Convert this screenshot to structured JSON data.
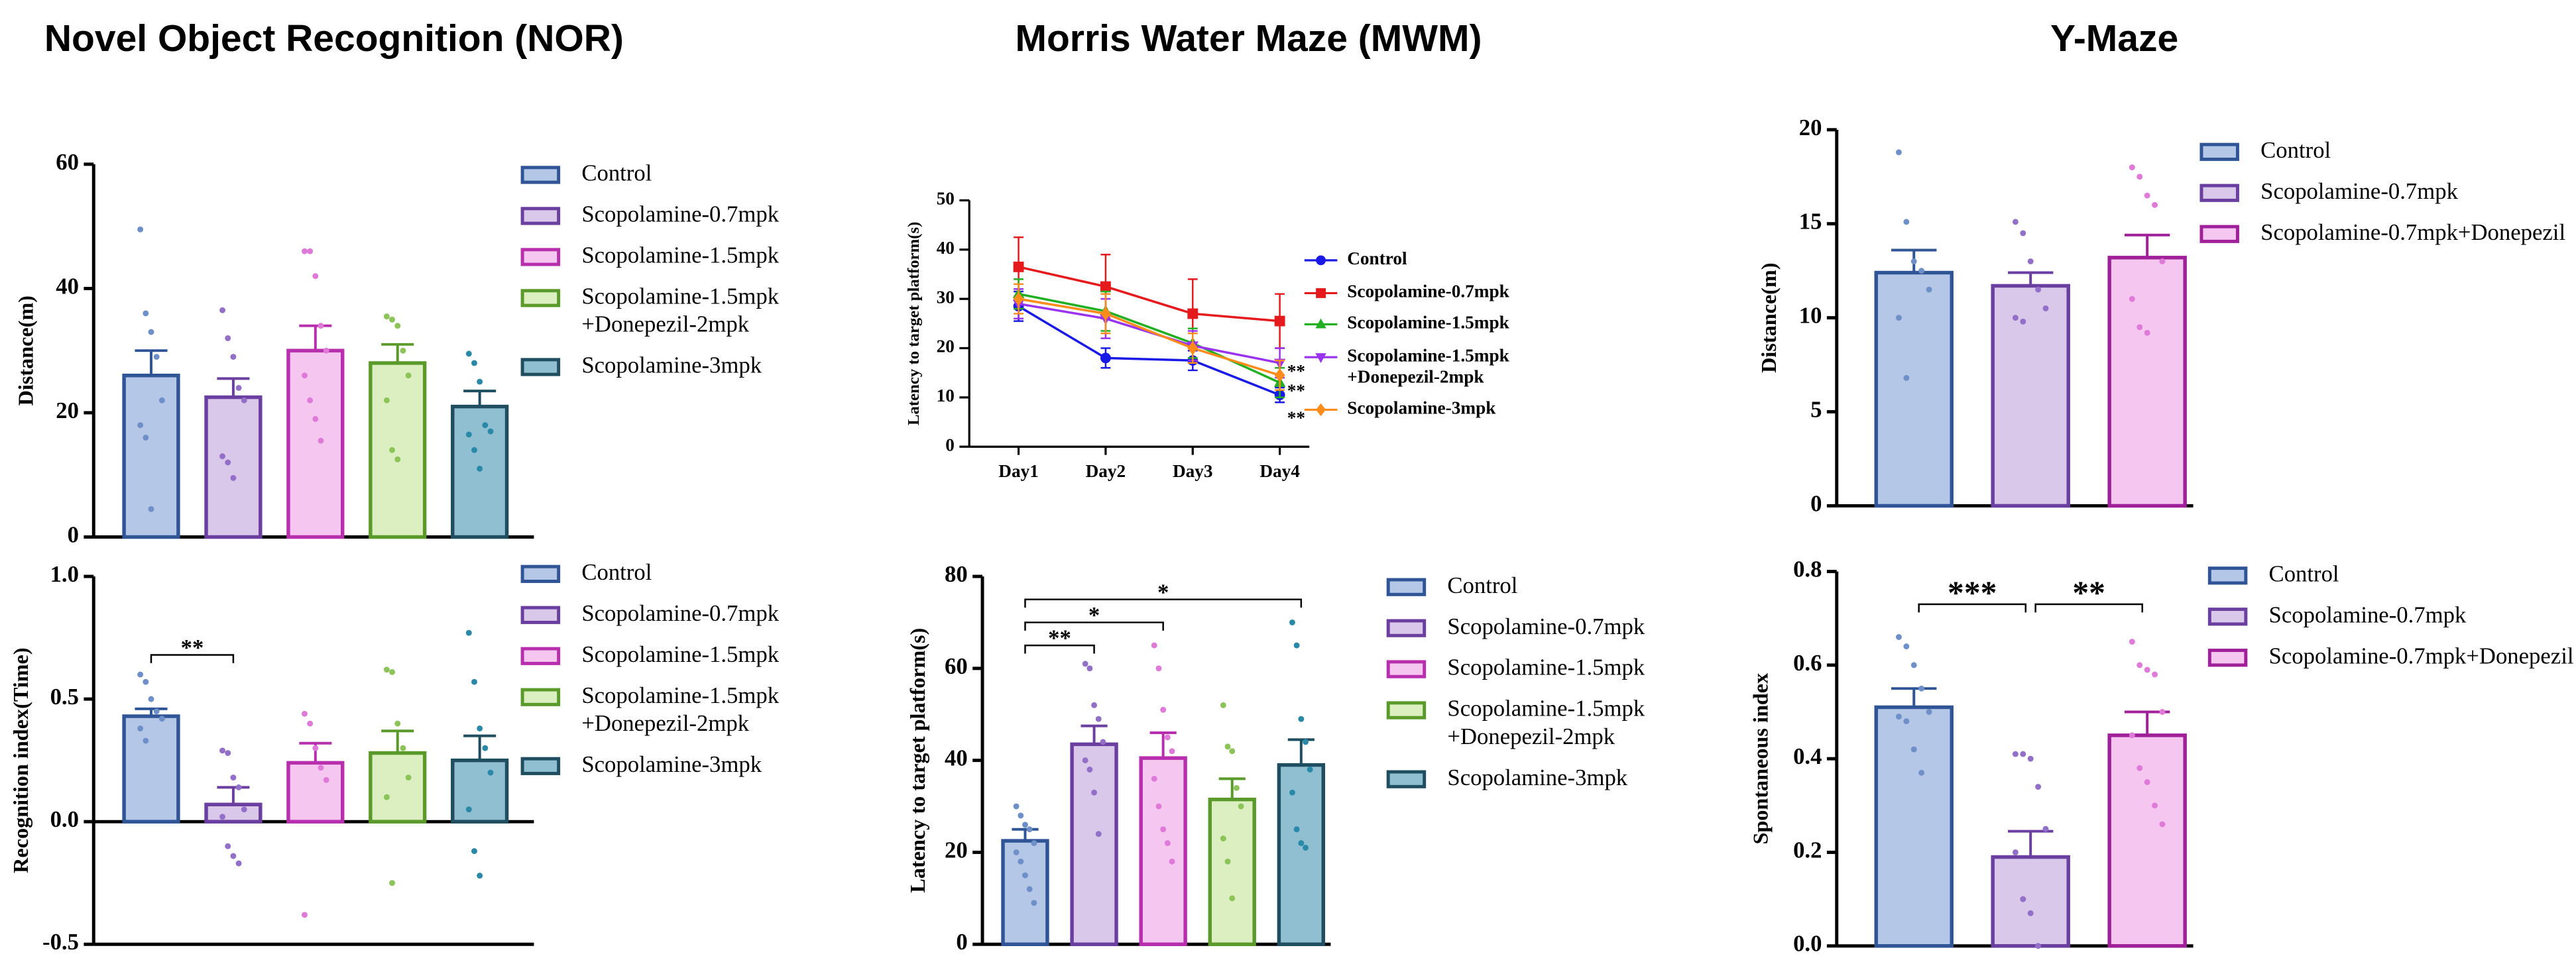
{
  "headings": [
    "Novel Object Recognition (NOR)",
    "Morris Water Maze (MWM)",
    "Y-Maze"
  ],
  "chart_data": [
    {
      "type": "bar",
      "ylabel": "Distance(m)",
      "ylim": [
        0,
        60
      ],
      "yticks": [
        0,
        20,
        40,
        60
      ],
      "series": [
        {
          "name": "Control",
          "color": "#2f5597",
          "fill": "#b4c7e7",
          "point_color": "#6f8fc8",
          "values": [
            26
          ],
          "errors": [
            4
          ],
          "points": [
            49.5,
            36,
            33,
            29,
            22,
            18,
            16,
            4.5
          ]
        },
        {
          "name": "Scopolamine-0.7mpk",
          "color": "#6a3fa0",
          "fill": "#d9c8ea",
          "point_color": "#9370c8",
          "values": [
            22.5
          ],
          "errors": [
            3
          ],
          "points": [
            36.5,
            32,
            29,
            24,
            22,
            13,
            12,
            9.5
          ]
        },
        {
          "name": "Scopolamine-1.5mpk",
          "color": "#b82fae",
          "fill": "#f5c6f0",
          "point_color": "#e07ad8",
          "values": [
            30
          ],
          "errors": [
            4
          ],
          "points": [
            46,
            46,
            42,
            34,
            30,
            26,
            22,
            19,
            15.5
          ]
        },
        {
          "name": "Scopolamine-1.5mpk\n+Donepezil-2mpk",
          "color": "#5a9a2a",
          "fill": "#dcefc0",
          "point_color": "#8cc45a",
          "values": [
            28
          ],
          "errors": [
            3
          ],
          "points": [
            35.5,
            35,
            34,
            30,
            26,
            22,
            14,
            12.5
          ]
        },
        {
          "name": "Scopolamine-3mpk",
          "color": "#1f4e60",
          "fill": "#8fbfd0",
          "point_color": "#2b89a8",
          "values": [
            21
          ],
          "errors": [
            2.5
          ],
          "points": [
            29.5,
            28,
            25,
            18,
            17,
            16.5,
            14,
            11
          ]
        }
      ]
    },
    {
      "type": "bar",
      "ylabel": "Recognition index(Time)",
      "ylim": [
        -0.5,
        1.0
      ],
      "yticks": [
        -0.5,
        {
          "value": 0,
          "label": "0.0"
        },
        0.5,
        {
          "value": 1,
          "label": "1.0"
        }
      ],
      "series": [
        {
          "name": "Control",
          "color": "#2f5597",
          "fill": "#b4c7e7",
          "point_color": "#6f8fc8",
          "values": [
            0.43
          ],
          "errors": [
            0.03
          ],
          "points": [
            0.6,
            0.57,
            0.5,
            0.45,
            0.42,
            0.38,
            0.33
          ]
        },
        {
          "name": "Scopolamine-0.7mpk",
          "color": "#6a3fa0",
          "fill": "#d9c8ea",
          "point_color": "#9370c8",
          "values": [
            0.07
          ],
          "errors": [
            0.07
          ],
          "points": [
            0.29,
            0.28,
            0.18,
            0.14,
            0.05,
            0.02,
            -0.1,
            -0.14,
            -0.17
          ]
        },
        {
          "name": "Scopolamine-1.5mpk",
          "color": "#b82fae",
          "fill": "#f5c6f0",
          "point_color": "#e07ad8",
          "values": [
            0.24
          ],
          "errors": [
            0.08
          ],
          "points": [
            0.44,
            0.4,
            0.3,
            0.22,
            0.17,
            -0.38
          ]
        },
        {
          "name": "Scopolamine-1.5mpk\n+Donepezil-2mpk",
          "color": "#5a9a2a",
          "fill": "#dcefc0",
          "point_color": "#8cc45a",
          "values": [
            0.28
          ],
          "errors": [
            0.09
          ],
          "points": [
            0.62,
            0.61,
            0.4,
            0.3,
            0.18,
            0.1,
            -0.25
          ]
        },
        {
          "name": "Scopolamine-3mpk",
          "color": "#1f4e60",
          "fill": "#8fbfd0",
          "point_color": "#2b89a8",
          "values": [
            0.25
          ],
          "errors": [
            0.1
          ],
          "points": [
            0.77,
            0.57,
            0.38,
            0.3,
            0.2,
            0.05,
            -0.12,
            -0.22
          ]
        }
      ],
      "annotations": [
        {
          "text": "**",
          "from": 0,
          "to": 1,
          "y": 0.68
        }
      ]
    },
    {
      "type": "line",
      "ylabel": "Latency to target platform(s)",
      "categories": [
        "Day1",
        "Day2",
        "Day3",
        "Day4"
      ],
      "ylim": [
        0,
        50
      ],
      "yticks": [
        0,
        10,
        20,
        30,
        40,
        50
      ],
      "series": [
        {
          "name": "Control",
          "color": "#1a1ae6",
          "marker": "circle",
          "values": [
            28.5,
            18,
            17.5,
            10.5
          ],
          "errors": [
            3,
            2,
            2,
            1.5
          ]
        },
        {
          "name": "Scopolamine-0.7mpk",
          "color": "#e41a1c",
          "marker": "square",
          "values": [
            36.5,
            32.5,
            27,
            25.5
          ],
          "errors": [
            6,
            6.5,
            7,
            5.5
          ]
        },
        {
          "name": "Scopolamine-1.5mpk",
          "color": "#22b022",
          "marker": "triangle-up",
          "values": [
            31,
            27.5,
            21,
            13
          ],
          "errors": [
            3,
            4,
            3,
            3
          ]
        },
        {
          "name": "Scopolamine-1.5mpk\n+Donepezil-2mpk",
          "color": "#9933ee",
          "marker": "triangle-down",
          "values": [
            29,
            26,
            20.5,
            17
          ],
          "errors": [
            3,
            4,
            3,
            3
          ]
        },
        {
          "name": "Scopolamine-3mpk",
          "color": "#ff8c1a",
          "marker": "diamond",
          "values": [
            30,
            27,
            20,
            14.5
          ],
          "errors": [
            3,
            4,
            3,
            3
          ]
        }
      ],
      "annotations": [
        {
          "text": "**",
          "x": 3,
          "y": 15
        },
        {
          "text": "**",
          "x": 3,
          "y": 11
        },
        {
          "text": "**",
          "x": 3,
          "y": 5.5
        }
      ]
    },
    {
      "type": "bar",
      "ylabel": "Latency to target platform(s)",
      "ylim": [
        0,
        80
      ],
      "yticks": [
        0,
        20,
        40,
        60,
        80
      ],
      "series": [
        {
          "name": "Control",
          "color": "#2f5597",
          "fill": "#b4c7e7",
          "point_color": "#6f8fc8",
          "values": [
            22.5
          ],
          "errors": [
            2.5
          ],
          "points": [
            30,
            28,
            26,
            25,
            22,
            20,
            18,
            15,
            12,
            9
          ]
        },
        {
          "name": "Scopolamine-0.7mpk",
          "color": "#6a3fa0",
          "fill": "#d9c8ea",
          "point_color": "#9370c8",
          "values": [
            43.5
          ],
          "errors": [
            4
          ],
          "points": [
            61,
            60,
            52,
            49,
            44,
            40,
            38,
            33,
            24
          ]
        },
        {
          "name": "Scopolamine-1.5mpk",
          "color": "#b82fae",
          "fill": "#f5c6f0",
          "point_color": "#e07ad8",
          "values": [
            40.5
          ],
          "errors": [
            5.5
          ],
          "points": [
            65,
            60,
            51,
            45,
            42,
            36,
            30,
            25,
            22,
            18
          ]
        },
        {
          "name": "Scopolamine-1.5mpk\n+Donepezil-2mpk",
          "color": "#5a9a2a",
          "fill": "#dcefc0",
          "point_color": "#8cc45a",
          "values": [
            31.5
          ],
          "errors": [
            4.5
          ],
          "points": [
            52,
            43,
            42,
            34,
            30,
            23,
            18,
            10
          ]
        },
        {
          "name": "Scopolamine-3mpk",
          "color": "#1f4e60",
          "fill": "#8fbfd0",
          "point_color": "#2b89a8",
          "values": [
            39
          ],
          "errors": [
            5.5
          ],
          "points": [
            70,
            65,
            49,
            44,
            38,
            33,
            25,
            22,
            21
          ]
        }
      ],
      "annotations": [
        {
          "text": "**",
          "from": 0,
          "to": 1,
          "y": 65
        },
        {
          "text": "*",
          "from": 0,
          "to": 2,
          "y": 70
        },
        {
          "text": "*",
          "from": 0,
          "to": 4,
          "y": 75
        }
      ]
    },
    {
      "type": "bar",
      "ylabel": "Distance(m)",
      "ylim": [
        0,
        20
      ],
      "yticks": [
        0,
        5,
        10,
        15,
        20
      ],
      "series": [
        {
          "name": "Control",
          "color": "#2f5597",
          "fill": "#b4c7e7",
          "point_color": "#6f8fc8",
          "values": [
            12.4
          ],
          "errors": [
            1.2
          ],
          "points": [
            18.8,
            15.1,
            13,
            12.5,
            11.5,
            10,
            6.8
          ]
        },
        {
          "name": "Scopolamine-0.7mpk",
          "color": "#6a3fa0",
          "fill": "#d9c8ea",
          "point_color": "#9370c8",
          "values": [
            11.7
          ],
          "errors": [
            0.7
          ],
          "points": [
            15.1,
            14.5,
            13,
            11.5,
            10.5,
            10,
            9.8
          ]
        },
        {
          "name": "Scopolamine-0.7mpk+Donepezil",
          "color": "#a0209a",
          "fill": "#f5c6f0",
          "point_color": "#e07ad8",
          "values": [
            13.2
          ],
          "errors": [
            1.2
          ],
          "points": [
            18,
            17.5,
            16.5,
            16,
            13,
            11,
            9.5,
            9.2
          ]
        }
      ]
    },
    {
      "type": "bar",
      "ylabel": "Spontaneous index",
      "ylim": [
        0,
        0.8
      ],
      "yticks": [
        {
          "value": 0,
          "label": "0.0"
        },
        0.2,
        0.4,
        0.6,
        0.8
      ],
      "series": [
        {
          "name": "Control",
          "color": "#2f5597",
          "fill": "#b4c7e7",
          "point_color": "#6f8fc8",
          "values": [
            0.51
          ],
          "errors": [
            0.04
          ],
          "points": [
            0.66,
            0.64,
            0.6,
            0.55,
            0.5,
            0.49,
            0.48,
            0.42,
            0.37
          ]
        },
        {
          "name": "Scopolamine-0.7mpk",
          "color": "#6a3fa0",
          "fill": "#d9c8ea",
          "point_color": "#9370c8",
          "values": [
            0.19
          ],
          "errors": [
            0.055
          ],
          "points": [
            0.41,
            0.41,
            0.4,
            0.34,
            0.25,
            0.2,
            0.1,
            0.07,
            0
          ]
        },
        {
          "name": "Scopolamine-0.7mpk+Donepezil",
          "color": "#a0209a",
          "fill": "#f5c6f0",
          "point_color": "#e07ad8",
          "values": [
            0.45
          ],
          "errors": [
            0.05
          ],
          "points": [
            0.65,
            0.6,
            0.59,
            0.58,
            0.5,
            0.45,
            0.38,
            0.35,
            0.3,
            0.26
          ]
        }
      ],
      "annotations": [
        {
          "text": "***",
          "from": 0,
          "to": 1,
          "y": 0.73
        },
        {
          "text": "**",
          "from": 1,
          "to": 2,
          "y": 0.73
        }
      ]
    }
  ]
}
